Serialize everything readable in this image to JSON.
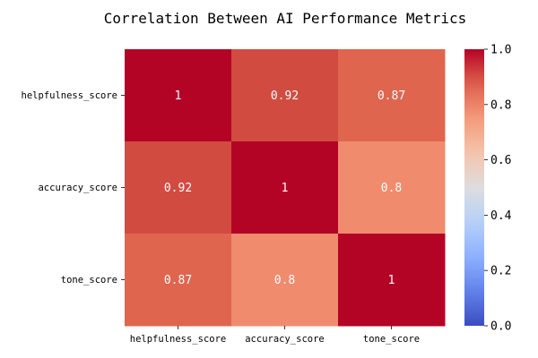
{
  "chart_data": {
    "type": "heatmap",
    "title": "Correlation Between AI Performance Metrics",
    "rows": [
      "helpfulness_score",
      "accuracy_score",
      "tone_score"
    ],
    "columns": [
      "helpfulness_score",
      "accuracy_score",
      "tone_score"
    ],
    "values": [
      [
        1,
        0.92,
        0.87
      ],
      [
        0.92,
        1,
        0.8
      ],
      [
        0.87,
        0.8,
        1
      ]
    ],
    "cell_labels": [
      [
        "1",
        "0.92",
        "0.87"
      ],
      [
        "0.92",
        "1",
        "0.8"
      ],
      [
        "0.87",
        "0.8",
        "1"
      ]
    ],
    "colormap": "coolwarm",
    "colorbar": {
      "range": [
        0.0,
        1.0
      ],
      "ticks": [
        "0.0",
        "0.2",
        "0.4",
        "0.6",
        "0.8",
        "1.0"
      ]
    },
    "colors": {
      "v1.00": "#b40426",
      "v0.92": "#d24b40",
      "v0.87": "#e0654f",
      "v0.80": "#f08b6e"
    },
    "grid": false
  }
}
